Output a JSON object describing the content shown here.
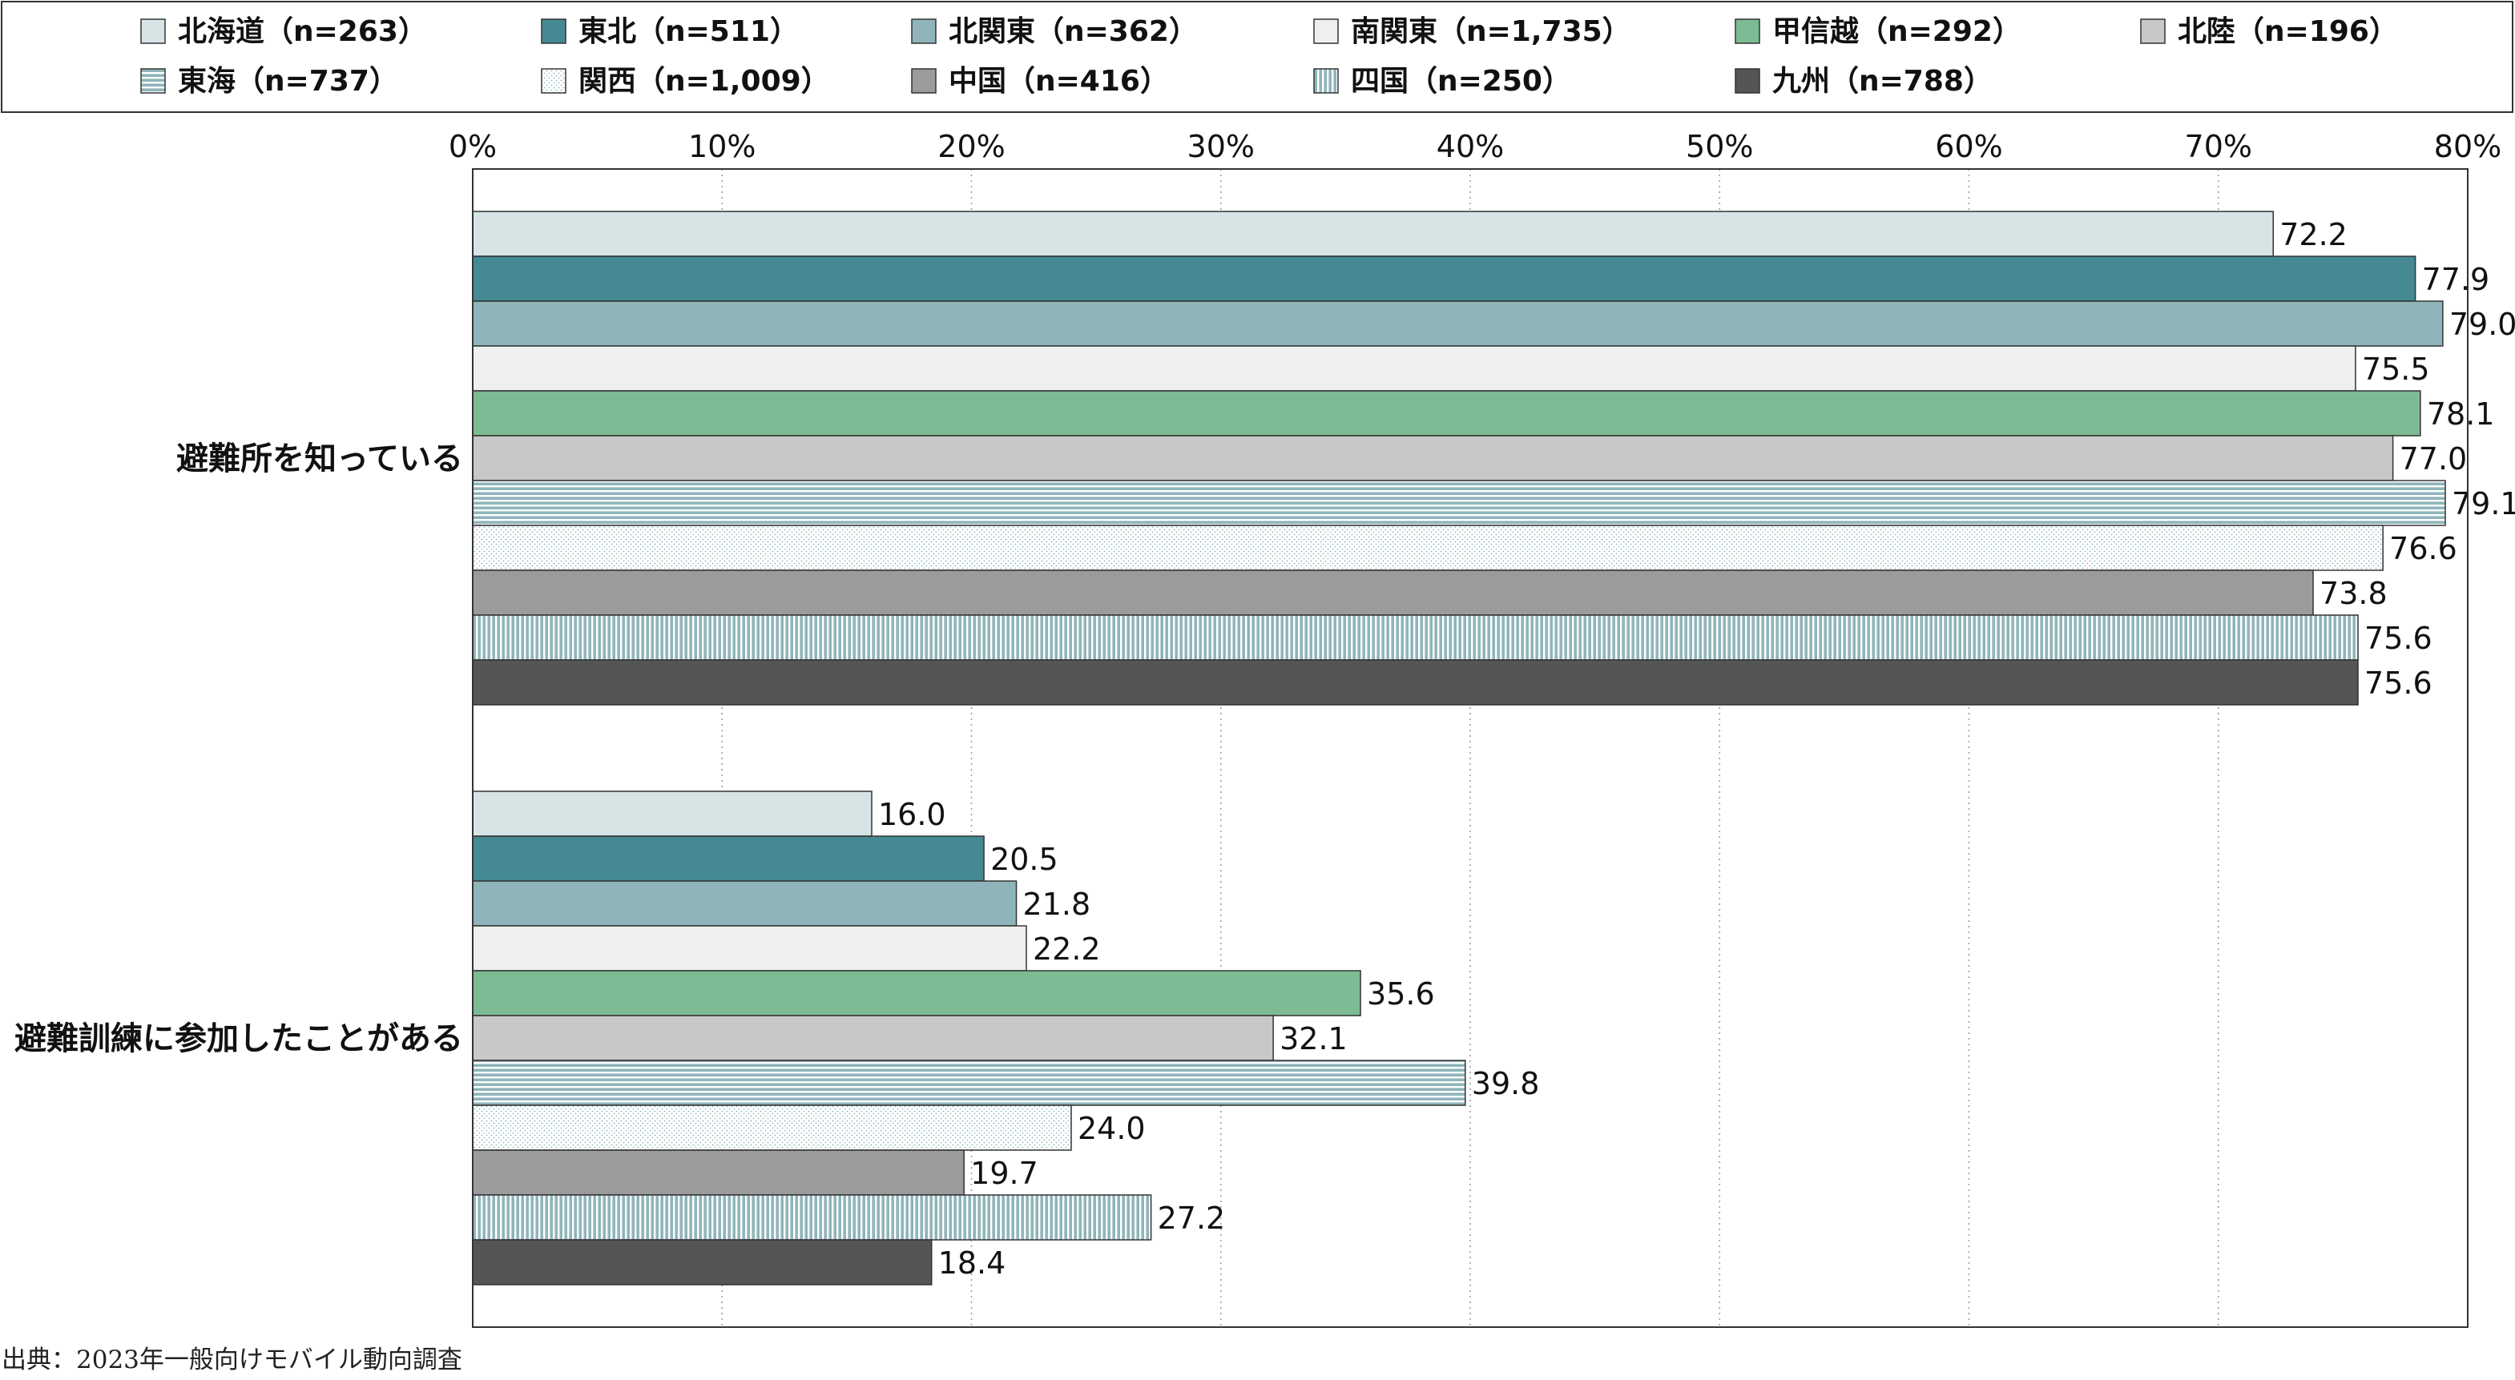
{
  "chart_data": {
    "type": "bar",
    "orientation": "horizontal",
    "categories": [
      "避難所を知っている",
      "避難訓練に参加したことがある"
    ],
    "xlim": [
      0,
      80
    ],
    "x_ticks": [
      "0%",
      "10%",
      "20%",
      "30%",
      "40%",
      "50%",
      "60%",
      "70%",
      "80%"
    ],
    "grid": true,
    "legend_position": "top",
    "series": [
      {
        "name": "北海道（n=263）",
        "values": [
          72.2,
          16.0
        ],
        "labels": [
          "72.2",
          "16.0"
        ],
        "color": "#d6e4e6",
        "pattern": "none"
      },
      {
        "name": "東北（n=511）",
        "values": [
          77.9,
          20.5
        ],
        "labels": [
          "77.9",
          "20.5"
        ],
        "color": "#458a93",
        "pattern": "none"
      },
      {
        "name": "北関東（n=362）",
        "values": [
          79.0,
          21.8
        ],
        "labels": [
          "79.0",
          "21.8"
        ],
        "color": "#8fb5bb",
        "pattern": "none"
      },
      {
        "name": "南関東（n=1,735）",
        "values": [
          75.5,
          22.2
        ],
        "labels": [
          "75.5",
          "22.2"
        ],
        "color": "#efefef",
        "pattern": "none"
      },
      {
        "name": "甲信越（n=292）",
        "values": [
          78.1,
          35.6
        ],
        "labels": [
          "78.1",
          "35.6"
        ],
        "color": "#7dbb94",
        "pattern": "none"
      },
      {
        "name": "北陸（n=196）",
        "values": [
          77.0,
          32.1
        ],
        "labels": [
          "77.0",
          "32.1"
        ],
        "color": "#c8c8c8",
        "pattern": "none"
      },
      {
        "name": "東海（n=737）",
        "values": [
          79.1,
          39.8
        ],
        "labels": [
          "79.1",
          "39.8"
        ],
        "color": "#8fb5bb",
        "pattern": "hstripe"
      },
      {
        "name": "関西（n=1,009）",
        "values": [
          76.6,
          24.0
        ],
        "labels": [
          "76.6",
          "24.0"
        ],
        "color": "#ffffff",
        "pattern": "dots"
      },
      {
        "name": "中国（n=416）",
        "values": [
          73.8,
          19.7
        ],
        "labels": [
          "73.8",
          "19.7"
        ],
        "color": "#9b9b9b",
        "pattern": "none"
      },
      {
        "name": "四国（n=250）",
        "values": [
          75.6,
          27.2
        ],
        "labels": [
          "75.6",
          "27.2"
        ],
        "color": "#8fb5bb",
        "pattern": "vstripe"
      },
      {
        "name": "九州（n=788）",
        "values": [
          75.6,
          18.4
        ],
        "labels": [
          "75.6",
          "18.4"
        ],
        "color": "#555555",
        "pattern": "none"
      }
    ]
  },
  "source": "出典：2023年一般向けモバイル動向調査"
}
